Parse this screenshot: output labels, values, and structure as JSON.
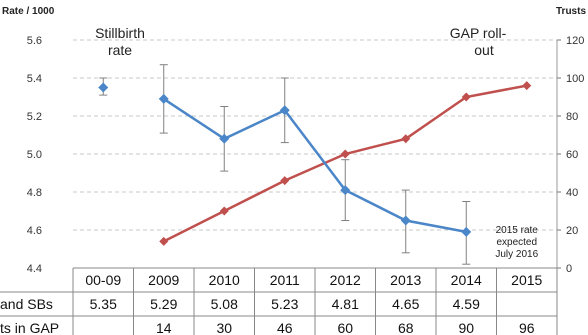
{
  "chart_data": {
    "type": "line",
    "categories": [
      "00-09",
      "2009",
      "2010",
      "2011",
      "2012",
      "2013",
      "2014",
      "2015"
    ],
    "left_axis": {
      "title": "Rate / 1000",
      "ylim": [
        4.4,
        5.6
      ],
      "ticks": [
        "4.4",
        "4.6",
        "4.8",
        "5.0",
        "5.2",
        "5.4",
        "5.6"
      ]
    },
    "right_axis": {
      "title": "Trusts",
      "ylim": [
        0,
        120
      ],
      "ticks": [
        "0",
        "20",
        "40",
        "60",
        "80",
        "100",
        "120"
      ]
    },
    "annotations": {
      "stillbirth": [
        "Stillbirth",
        "rate"
      ],
      "gap": [
        "GAP roll-",
        "out"
      ],
      "note_2015": [
        "2015 rate",
        "expected",
        "July 2016"
      ]
    },
    "series": [
      {
        "axis": "left",
        "color": "#4a86c8",
        "baseline_value": 5.35,
        "baseline_error": [
          5.31,
          5.4
        ],
        "values": [
          null,
          5.29,
          5.08,
          5.23,
          4.81,
          4.65,
          4.59,
          null
        ],
        "error_low": [
          null,
          5.11,
          4.91,
          5.06,
          4.65,
          4.48,
          4.42,
          null
        ],
        "error_high": [
          null,
          5.47,
          5.25,
          5.4,
          4.97,
          4.81,
          4.75,
          null
        ]
      },
      {
        "axis": "right",
        "color": "#c0504d",
        "values": [
          null,
          14,
          30,
          46,
          60,
          68,
          90,
          96
        ]
      }
    ],
    "table": {
      "rows": [
        {
          "label": "and SBs",
          "cells": [
            "5.35",
            "5.29",
            "5.08",
            "5.23",
            "4.81",
            "4.65",
            "4.59",
            ""
          ]
        },
        {
          "label": "ts in GAP",
          "cells": [
            "",
            "14",
            "30",
            "46",
            "60",
            "68",
            "90",
            "96"
          ]
        }
      ]
    },
    "grid": true,
    "legend": "none"
  }
}
